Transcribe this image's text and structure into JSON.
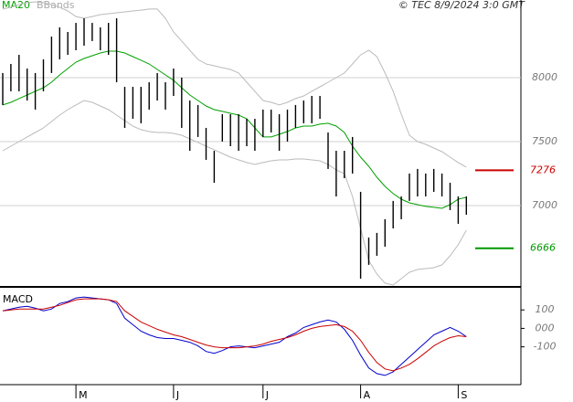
{
  "chart_data": [
    {
      "type": "ohlc",
      "source": "© TEC 8/9/2024 3:0 GMT",
      "categories": [
        null,
        null,
        null,
        null,
        null,
        null,
        null,
        null,
        null,
        "M",
        null,
        null,
        null,
        null,
        null,
        null,
        null,
        null,
        null,
        null,
        null,
        "J",
        null,
        null,
        null,
        null,
        null,
        null,
        null,
        null,
        null,
        null,
        "J",
        null,
        null,
        null,
        null,
        null,
        null,
        null,
        null,
        null,
        null,
        null,
        "A",
        null,
        null,
        null,
        null,
        null,
        null,
        null,
        null,
        null,
        null,
        null,
        "S",
        null
      ],
      "high": [
        8036,
        8107,
        8178,
        8071,
        8036,
        8143,
        8321,
        8393,
        8357,
        8428,
        8464,
        8428,
        8393,
        8428,
        8464,
        7928,
        7928,
        7928,
        7964,
        8036,
        7964,
        8071,
        8000,
        7821,
        7786,
        7607,
        7428,
        7714,
        7714,
        7714,
        7678,
        7678,
        7750,
        7750,
        7714,
        7750,
        7786,
        7821,
        7857,
        7857,
        7571,
        7428,
        7428,
        7536,
        7107,
        6750,
        6786,
        6893,
        7036,
        7071,
        7250,
        7286,
        7250,
        7286,
        7250,
        7178,
        7071,
        7071
      ],
      "low": [
        7786,
        7893,
        7893,
        7821,
        7750,
        7893,
        8036,
        8143,
        8178,
        8214,
        8250,
        8286,
        8214,
        8178,
        7964,
        7607,
        7678,
        7643,
        7750,
        7821,
        7750,
        7857,
        7607,
        7428,
        7536,
        7357,
        7178,
        7500,
        7464,
        7428,
        7464,
        7428,
        7536,
        7571,
        7428,
        7500,
        7607,
        7643,
        7643,
        7678,
        7286,
        7071,
        7214,
        7250,
        6428,
        6536,
        6607,
        6678,
        6821,
        6893,
        7036,
        7071,
        7071,
        7107,
        7071,
        6964,
        6857,
        6928
      ],
      "color": "#000000",
      "series": [
        {
          "name": "MA20",
          "color": "#00a000",
          "values": [
            7786,
            7807,
            7836,
            7864,
            7893,
            7921,
            7964,
            8021,
            8071,
            8121,
            8150,
            8171,
            8193,
            8207,
            8207,
            8193,
            8164,
            8136,
            8107,
            8064,
            8021,
            7979,
            7921,
            7864,
            7821,
            7778,
            7750,
            7736,
            7721,
            7707,
            7678,
            7607,
            7536,
            7536,
            7557,
            7579,
            7607,
            7621,
            7621,
            7636,
            7643,
            7621,
            7571,
            7464,
            7378,
            7307,
            7221,
            7150,
            7093,
            7050,
            7021,
            7007,
            6993,
            6986,
            6978,
            7007,
            7050,
            7064
          ]
        },
        {
          "name": "BBands",
          "color": "#bbbbbb",
          "upper": [
            8536,
            8550,
            8571,
            8586,
            8593,
            8586,
            8571,
            8550,
            8521,
            8478,
            8464,
            8478,
            8493,
            8500,
            8507,
            8514,
            8521,
            8528,
            8536,
            8536,
            8464,
            8357,
            8286,
            8214,
            8143,
            8107,
            8093,
            8078,
            8064,
            8036,
            7964,
            7893,
            7821,
            7807,
            7786,
            7807,
            7836,
            7857,
            7893,
            7928,
            7964,
            8000,
            8036,
            8107,
            8178,
            8214,
            8164,
            8036,
            7893,
            7714,
            7550,
            7500,
            7478,
            7450,
            7421,
            7378,
            7336,
            7300
          ],
          "lower": [
            7428,
            7464,
            7500,
            7536,
            7571,
            7607,
            7657,
            7707,
            7750,
            7786,
            7821,
            7807,
            7778,
            7750,
            7707,
            7664,
            7621,
            7593,
            7578,
            7571,
            7571,
            7564,
            7550,
            7521,
            7493,
            7464,
            7436,
            7407,
            7378,
            7357,
            7336,
            7321,
            7336,
            7350,
            7357,
            7357,
            7364,
            7364,
            7357,
            7350,
            7321,
            7278,
            7250,
            7071,
            6821,
            6571,
            6464,
            6393,
            6378,
            6428,
            6478,
            6500,
            6507,
            6514,
            6536,
            6607,
            6693,
            6807
          ]
        }
      ],
      "levels": [
        {
          "value": 7276,
          "color": "#cc0000"
        },
        {
          "value": 6666,
          "color": "#009900"
        }
      ],
      "ylim": [
        6371,
        8607
      ],
      "yticks": [
        8000,
        7500,
        7000
      ],
      "grid": true
    },
    {
      "type": "line",
      "title": "MACD",
      "series": [
        {
          "color": "#0000cc",
          "values": [
            95,
            105,
            115,
            120,
            110,
            95,
            105,
            135,
            145,
            165,
            170,
            165,
            160,
            155,
            135,
            55,
            20,
            -15,
            -35,
            -50,
            -55,
            -55,
            -65,
            -75,
            -95,
            -125,
            -135,
            -120,
            -100,
            -95,
            -100,
            -105,
            -95,
            -85,
            -75,
            -45,
            -25,
            5,
            20,
            35,
            45,
            35,
            -5,
            -65,
            -145,
            -215,
            -245,
            -255,
            -235,
            -195,
            -155,
            -115,
            -75,
            -35,
            -15,
            5,
            -15,
            -45
          ]
        },
        {
          "color": "#cc0000",
          "values": [
            95,
            100,
            105,
            105,
            105,
            105,
            115,
            125,
            140,
            155,
            160,
            160,
            160,
            155,
            145,
            95,
            65,
            35,
            15,
            -5,
            -20,
            -35,
            -45,
            -60,
            -75,
            -90,
            -100,
            -105,
            -105,
            -105,
            -100,
            -95,
            -85,
            -70,
            -60,
            -50,
            -35,
            -15,
            0,
            10,
            15,
            20,
            10,
            -15,
            -65,
            -130,
            -185,
            -220,
            -230,
            -215,
            -195,
            -165,
            -130,
            -95,
            -70,
            -50,
            -40,
            -45
          ]
        }
      ],
      "ylim": [
        -300,
        220
      ],
      "yticks": [
        100,
        {
          "value": 0,
          "label": "000"
        },
        -100
      ],
      "grid": false
    }
  ]
}
